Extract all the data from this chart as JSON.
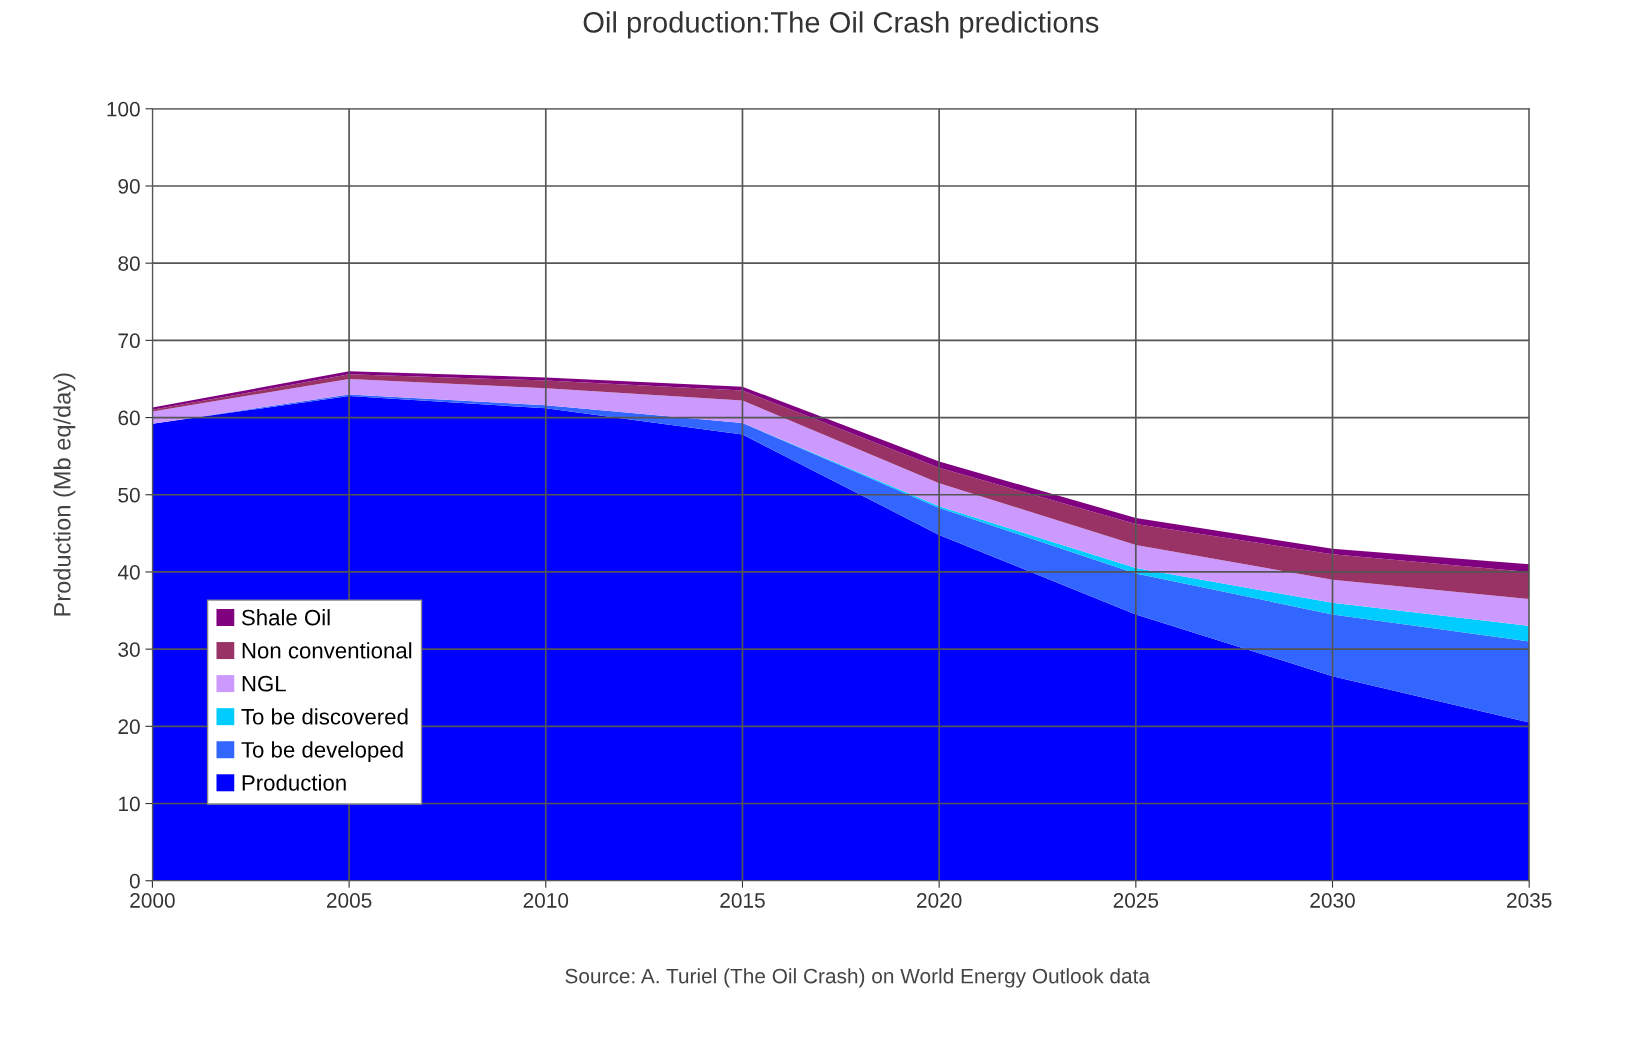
{
  "chart_data": {
    "type": "area",
    "stacked": true,
    "title": "Oil production:The Oil Crash predictions",
    "ylabel": "Production (Mb eq/day)",
    "x": [
      2000,
      2005,
      2010,
      2015,
      2020,
      2025,
      2030,
      2035
    ],
    "series": [
      {
        "name": "Production",
        "color": "#0000ff",
        "values": [
          59.2,
          62.8,
          61.2,
          57.8,
          44.8,
          34.5,
          26.5,
          20.5
        ]
      },
      {
        "name": "To be developed",
        "color": "#3366ff",
        "values": [
          0,
          0.2,
          0.4,
          1.5,
          3.5,
          5.3,
          8.0,
          10.5
        ]
      },
      {
        "name": "To be discovered",
        "color": "#00ccff",
        "values": [
          0,
          0,
          0,
          0,
          0.2,
          0.7,
          1.5,
          2.0
        ]
      },
      {
        "name": "NGL",
        "color": "#cc99ff",
        "values": [
          1.6,
          2.0,
          2.2,
          2.9,
          3.0,
          3.0,
          3.0,
          3.5
        ]
      },
      {
        "name": "Non conventional",
        "color": "#993366",
        "values": [
          0.2,
          0.6,
          1.0,
          1.3,
          2.0,
          2.7,
          3.3,
          3.5
        ]
      },
      {
        "name": "Shale Oil",
        "color": "#800080",
        "values": [
          0.3,
          0.4,
          0.4,
          0.5,
          0.8,
          0.8,
          0.7,
          1.0
        ]
      }
    ],
    "xlim": [
      2000,
      2035
    ],
    "xticks": [
      2000,
      2005,
      2010,
      2015,
      2020,
      2025,
      2030,
      2035
    ],
    "ylim": [
      0,
      100
    ],
    "yticks": [
      0,
      10,
      20,
      30,
      40,
      50,
      60,
      70,
      80,
      90,
      100
    ],
    "grid": true,
    "legend": "bottom left",
    "annotations": [
      "Source: A. Turiel (The Oil Crash) on World Energy Outlook data"
    ]
  }
}
